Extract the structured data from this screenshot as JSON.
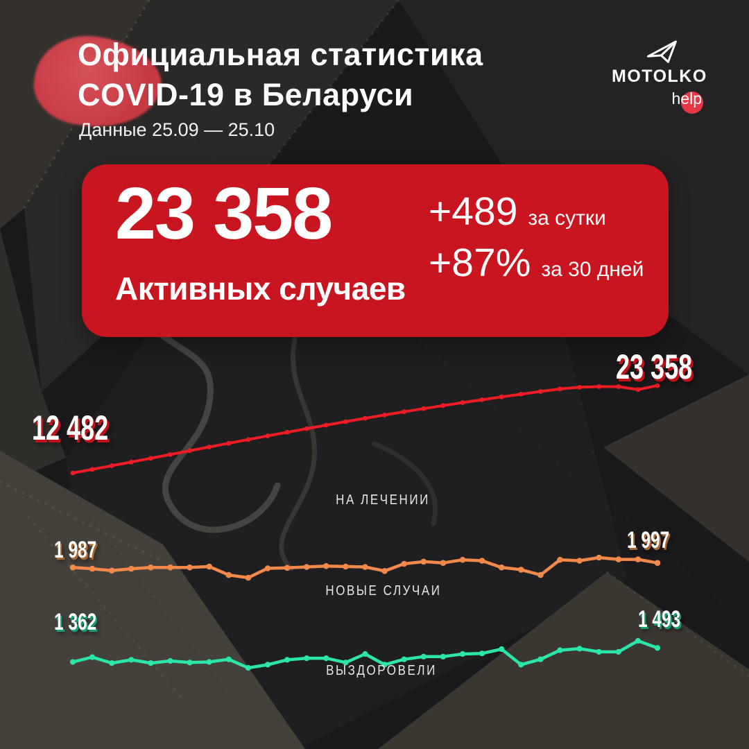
{
  "header": {
    "title_line1": "Официальная статистика",
    "title_line2": "COVID-19 в Беларуси",
    "subtitle": "Данные 25.09 — 25.10",
    "logo": {
      "brand": "MOTOLKO",
      "sub": "help",
      "icon": "paper-plane-icon",
      "dot_color": "#e53744"
    }
  },
  "summary_card": {
    "main_value": "23 358",
    "main_label": "Активных случаев",
    "delta_day_value": "+489",
    "delta_day_label": "за сутки",
    "delta_month_value": "+87%",
    "delta_month_label": "за 30 дней",
    "bg_color": "#c9151f"
  },
  "chart_data": [
    {
      "type": "line",
      "name": "НА ЛЕЧЕНИИ",
      "color": "#ee1c24",
      "label_shadow_color": "#c0121a",
      "start_label": "12 482",
      "end_label": "23 358",
      "x_start": "25.09",
      "x_end": "25.10",
      "legend_position": "below-center",
      "grid": false,
      "values": [
        12482,
        12930,
        13390,
        13850,
        14310,
        14780,
        15250,
        15720,
        16180,
        16640,
        17100,
        17550,
        18000,
        18440,
        18870,
        19290,
        19700,
        20100,
        20490,
        20870,
        21240,
        21600,
        21950,
        22290,
        22620,
        22940,
        23150,
        23230,
        23230,
        22869,
        23358
      ]
    },
    {
      "type": "line",
      "name": "НОВЫЕ СЛУЧАИ",
      "color": "#f0894a",
      "label_shadow_color": "#a8652f",
      "start_label": "1 987",
      "end_label": "1 997",
      "x_start": "25.09",
      "x_end": "25.10",
      "legend_position": "below-center",
      "grid": false,
      "values": [
        1987,
        1984,
        1980,
        1984,
        1987,
        1987,
        1987,
        1989,
        1970,
        1964,
        1985,
        1986,
        1988,
        1990,
        1989,
        1988,
        1979,
        1995,
        2000,
        1997,
        2004,
        2002,
        1987,
        1982,
        1970,
        2004,
        2002,
        2009,
        2005,
        2005,
        1997
      ]
    },
    {
      "type": "line",
      "name": "ВЫЗДОРОВЕЛИ",
      "color": "#2ce6a9",
      "label_shadow_color": "#149e77",
      "start_label": "1 362",
      "end_label": "1 493",
      "x_start": "25.09",
      "x_end": "25.10",
      "legend_position": "below-center",
      "grid": false,
      "values": [
        1362,
        1407,
        1352,
        1382,
        1352,
        1372,
        1357,
        1362,
        1387,
        1307,
        1337,
        1382,
        1397,
        1397,
        1357,
        1437,
        1337,
        1387,
        1412,
        1412,
        1437,
        1442,
        1482,
        1337,
        1387,
        1472,
        1487,
        1457,
        1457,
        1560,
        1493
      ]
    }
  ]
}
